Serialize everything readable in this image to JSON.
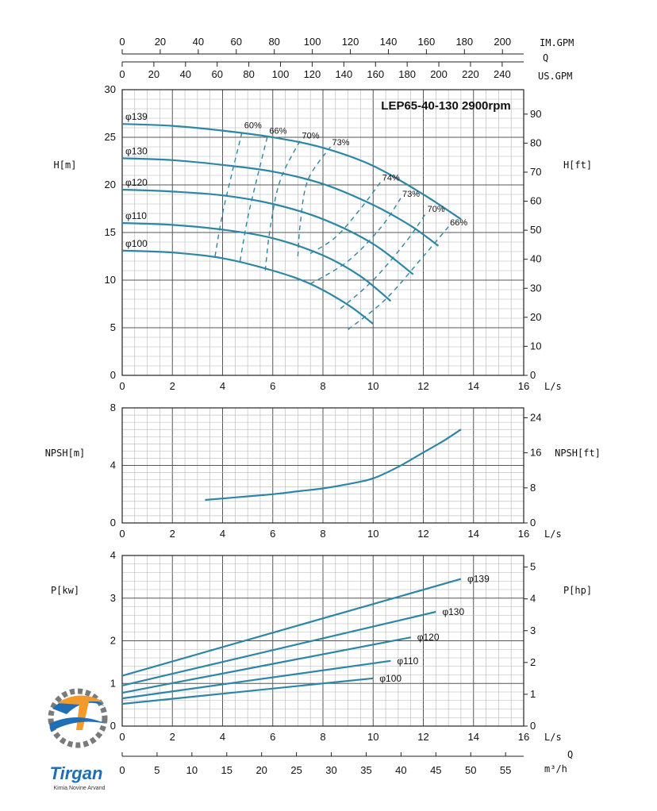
{
  "title": "LEP65-40-130 2900rpm",
  "colors": {
    "curve": "#2e86a6",
    "grid_major": "#555555",
    "grid_minor": "#b5b5b5",
    "frame": "#222222",
    "logo_blue": "#1e6fb5",
    "logo_orange": "#f39a2b"
  },
  "top_axes": {
    "im_gpm": {
      "label": "IM.GPM",
      "ticks": [
        0,
        20,
        40,
        60,
        80,
        100,
        120,
        140,
        160,
        180,
        200
      ]
    },
    "q_label": "Q",
    "us_gpm": {
      "label": "US.GPM",
      "ticks": [
        0,
        20,
        40,
        60,
        80,
        100,
        120,
        140,
        160,
        180,
        200,
        220,
        240
      ]
    }
  },
  "bottom_axes": {
    "ls_label": "L/s",
    "m3h": {
      "label": "m³/h",
      "ticks": [
        0,
        5,
        10,
        15,
        20,
        25,
        30,
        35,
        40,
        45,
        50,
        55
      ]
    },
    "q_label": "Q"
  },
  "logo": {
    "name": "Tirgan",
    "subtitle": "Kimia Novine Arvand"
  },
  "chart_data": [
    {
      "type": "line",
      "panel": "head",
      "xlabel": "L/s",
      "ylabel": "H[m]",
      "ylabel_right": "H[ft]",
      "xlim": [
        0,
        16
      ],
      "ylim": [
        0,
        30
      ],
      "xticks": [
        0,
        2,
        4,
        6,
        8,
        10,
        12,
        14,
        16
      ],
      "yticks": [
        0,
        5,
        10,
        15,
        20,
        25,
        30
      ],
      "yticks_right": [
        0,
        10,
        20,
        30,
        40,
        50,
        60,
        70,
        80,
        90
      ],
      "series": [
        {
          "name": "φ139",
          "x": [
            0,
            2,
            4,
            6,
            8,
            10,
            12,
            13.5
          ],
          "y": [
            26.4,
            26.2,
            25.7,
            25.0,
            23.9,
            22.0,
            19.0,
            16.4
          ]
        },
        {
          "name": "φ130",
          "x": [
            0,
            2,
            4,
            6,
            8,
            10,
            11.5,
            12.6
          ],
          "y": [
            22.8,
            22.6,
            22.1,
            21.4,
            20.1,
            17.9,
            15.7,
            13.6
          ]
        },
        {
          "name": "φ120",
          "x": [
            0,
            2,
            4,
            6,
            8,
            10,
            11.6
          ],
          "y": [
            19.5,
            19.3,
            18.9,
            18.0,
            16.4,
            13.8,
            10.6
          ]
        },
        {
          "name": "φ110",
          "x": [
            0,
            2,
            4,
            6,
            8,
            9.5,
            10.7
          ],
          "y": [
            16.0,
            15.8,
            15.3,
            14.4,
            12.6,
            10.4,
            7.8
          ]
        },
        {
          "name": "φ100",
          "x": [
            0,
            2,
            4,
            6,
            7.5,
            9,
            10
          ],
          "y": [
            13.1,
            12.9,
            12.3,
            11.0,
            9.6,
            7.4,
            5.4
          ]
        }
      ],
      "efficiency": [
        {
          "label": "60%",
          "x": [
            3.7,
            4.0,
            4.4,
            4.8
          ],
          "y": [
            12.5,
            17.0,
            21.5,
            25.8
          ]
        },
        {
          "label": "66%",
          "x": [
            4.7,
            5.0,
            5.4,
            5.8
          ],
          "y": [
            12.0,
            16.5,
            21.0,
            25.2
          ]
        },
        {
          "label": "70%",
          "x": [
            5.7,
            5.9,
            6.3,
            7.1
          ],
          "y": [
            11.0,
            15.5,
            20.5,
            24.7
          ]
        },
        {
          "label": "73%",
          "x": [
            7.0,
            7.1,
            7.4,
            8.3
          ],
          "y": [
            12.5,
            16.0,
            20.5,
            24.0
          ]
        },
        {
          "label": "74%",
          "x": [
            7.5,
            8.5,
            9.5,
            10.3
          ],
          "y": [
            12.8,
            14.5,
            17.5,
            20.3
          ]
        },
        {
          "label": "73%",
          "x": [
            7.5,
            9.0,
            10.3,
            11.1
          ],
          "y": [
            9.6,
            12.0,
            15.5,
            18.6
          ]
        },
        {
          "label": "70%",
          "x": [
            8.7,
            10.0,
            11.3,
            12.1
          ],
          "y": [
            7.0,
            10.0,
            14.0,
            17.0
          ]
        },
        {
          "label": "66%",
          "x": [
            9.0,
            10.5,
            12.0,
            13.0
          ],
          "y": [
            4.8,
            8.0,
            12.5,
            15.6
          ]
        }
      ]
    },
    {
      "type": "line",
      "panel": "npsh",
      "xlabel": "L/s",
      "ylabel": "NPSH[m]",
      "ylabel_right": "NPSH[ft]",
      "xlim": [
        0,
        16
      ],
      "ylim": [
        0,
        8
      ],
      "xticks": [
        0,
        2,
        4,
        6,
        8,
        10,
        12,
        14,
        16
      ],
      "yticks": [
        0,
        4,
        8
      ],
      "yticks_right": [
        0,
        8,
        16,
        24
      ],
      "series": [
        {
          "name": "",
          "x": [
            3.3,
            4,
            5,
            6,
            7,
            8,
            9,
            10,
            11,
            12,
            12.8,
            13.5
          ],
          "y": [
            1.6,
            1.7,
            1.85,
            2.0,
            2.2,
            2.4,
            2.7,
            3.1,
            3.9,
            4.9,
            5.7,
            6.5
          ]
        }
      ]
    },
    {
      "type": "line",
      "panel": "power",
      "xlabel": "L/s",
      "ylabel": "P[kw]",
      "ylabel_right": "P[hp]",
      "xlim": [
        0,
        16
      ],
      "ylim": [
        0,
        4
      ],
      "xticks": [
        0,
        2,
        4,
        6,
        8,
        10,
        12,
        14,
        16
      ],
      "yticks": [
        0,
        1,
        2,
        3,
        4
      ],
      "yticks_right": [
        0,
        1,
        2,
        3,
        4,
        5
      ],
      "series": [
        {
          "name": "φ139",
          "x": [
            0,
            13.5
          ],
          "y": [
            1.18,
            3.45
          ]
        },
        {
          "name": "φ130",
          "x": [
            0,
            12.5
          ],
          "y": [
            0.95,
            2.68
          ]
        },
        {
          "name": "φ120",
          "x": [
            0,
            11.5
          ],
          "y": [
            0.78,
            2.08
          ]
        },
        {
          "name": "φ110",
          "x": [
            0,
            10.7
          ],
          "y": [
            0.65,
            1.53
          ]
        },
        {
          "name": "φ100",
          "x": [
            0,
            10.0
          ],
          "y": [
            0.52,
            1.12
          ]
        }
      ]
    }
  ]
}
